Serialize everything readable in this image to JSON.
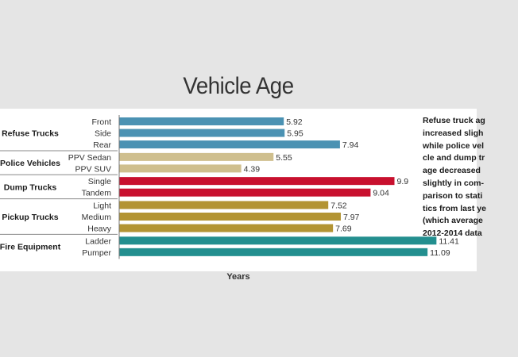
{
  "chart_data": {
    "type": "bar",
    "orientation": "horizontal",
    "title": "Vehicle Age",
    "xlabel": "Years",
    "ylabel": "",
    "xlim": [
      0,
      12.5
    ],
    "grid": false,
    "groups": [
      {
        "name": "Refuse Trucks",
        "color": "#4b92b3",
        "items": [
          {
            "label": "Front",
            "value": 5.92
          },
          {
            "label": "Side",
            "value": 5.95
          },
          {
            "label": "Rear",
            "value": 7.94
          }
        ]
      },
      {
        "name": "Police Vehicles",
        "color": "#cfbf8e",
        "items": [
          {
            "label": "PPV Sedan",
            "value": 5.55
          },
          {
            "label": "PPV SUV",
            "value": 4.39
          }
        ]
      },
      {
        "name": "Dump Trucks",
        "color": "#c8102e",
        "items": [
          {
            "label": "Single",
            "value": 9.9
          },
          {
            "label": "Tandem",
            "value": 9.04
          }
        ]
      },
      {
        "name": "Pickup Trucks",
        "color": "#b39433",
        "items": [
          {
            "label": "Light",
            "value": 7.52
          },
          {
            "label": "Medium",
            "value": 7.97
          },
          {
            "label": "Heavy",
            "value": 7.69
          }
        ]
      },
      {
        "name": "Fire Equipment",
        "color": "#238f8f",
        "items": [
          {
            "label": "Ladder",
            "value": 11.41
          },
          {
            "label": "Pumper",
            "value": 11.09
          }
        ]
      }
    ],
    "annotation_lines": [
      "Refuse truck ag",
      "increased sligh",
      "while police vel",
      "cle and dump tr",
      "age decreased",
      "slightly in com-",
      "parison to stati",
      "tics from last ye",
      "(which average",
      "2012-2014 data"
    ]
  }
}
